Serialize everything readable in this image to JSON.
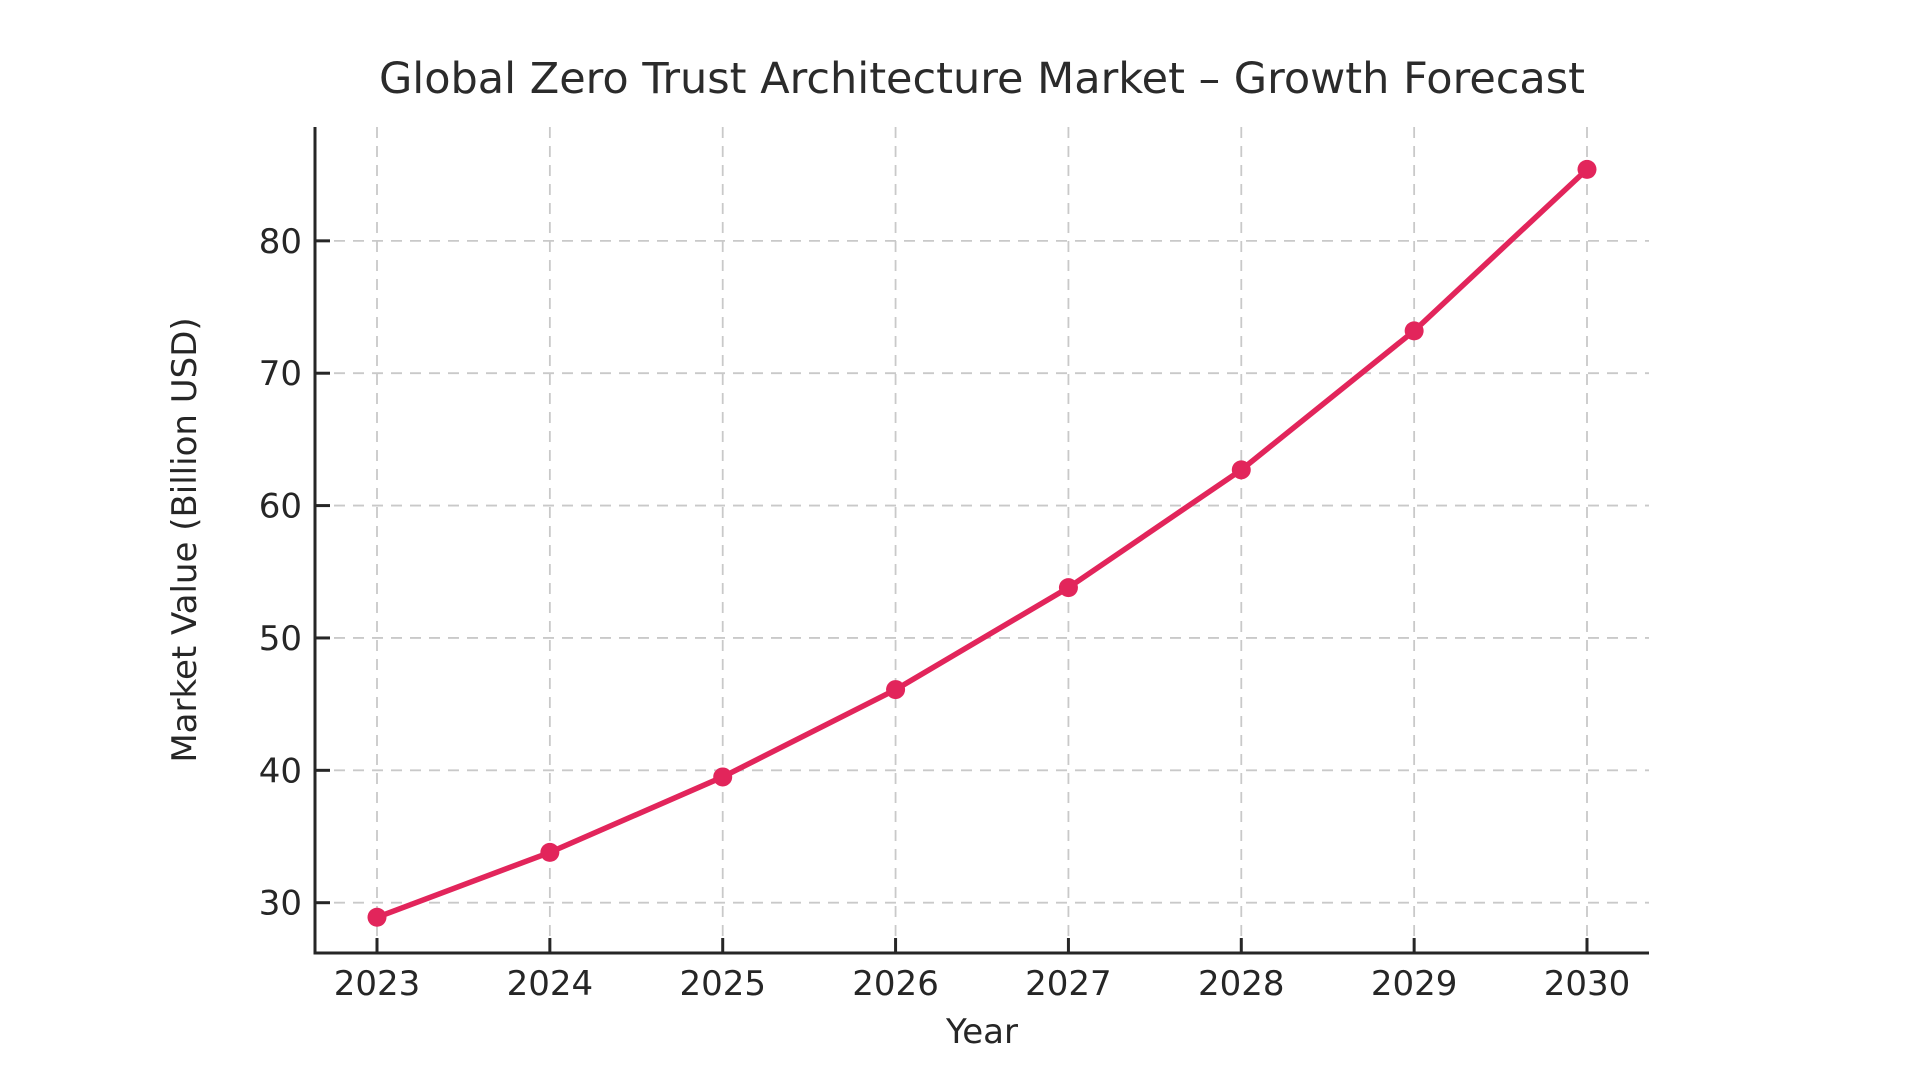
{
  "chart_data": {
    "type": "line",
    "title": "Global Zero Trust Architecture Market – Growth Forecast",
    "xlabel": "Year",
    "ylabel": "Market Value (Billion USD)",
    "categories": [
      "2023",
      "2024",
      "2025",
      "2026",
      "2027",
      "2028",
      "2029",
      "2030"
    ],
    "series": [
      {
        "name": "Market Value (Billion USD)",
        "values": [
          28.9,
          33.8,
          39.5,
          46.1,
          53.8,
          62.7,
          73.2,
          85.4
        ]
      }
    ],
    "y_ticks": [
      30,
      40,
      50,
      60,
      70,
      80
    ],
    "ylim": [
      26.2,
      88.6
    ],
    "grid": true,
    "grid_style": "dashed",
    "legend": "none",
    "line_color": "#e2255b",
    "marker": "circle",
    "marker_color": "#e2255b",
    "background_color": "#ffffff",
    "text_color": "#262626",
    "grid_color": "#c9c9c9",
    "spine_color": "#262626"
  }
}
